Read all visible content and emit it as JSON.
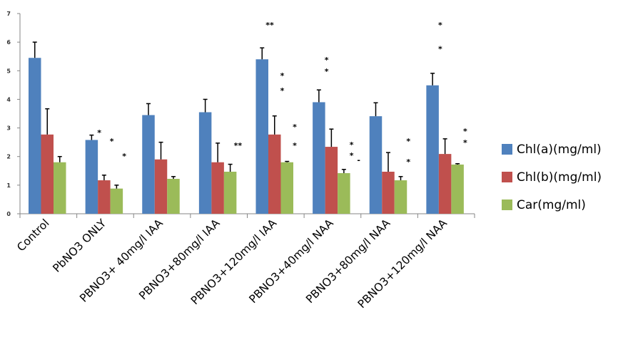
{
  "chart_data": {
    "type": "bar",
    "title": "",
    "xlabel": "",
    "ylabel": "",
    "ylim": [
      0,
      7
    ],
    "yticks": [
      0,
      1,
      2,
      3,
      4,
      5,
      6,
      7
    ],
    "grid": false,
    "legend_position": "right",
    "categories": [
      "Control",
      "PbNO3 ONLY",
      "PBNO3+ 40mg/l IAA",
      "PBNO3+80mg/l IAA",
      "PBNO3+120mg/l IAA",
      "PBNO3+40mg/l NAA",
      "PBNO3+80mg/l NAA",
      "PBNO3+120mg/l NAA"
    ],
    "series": [
      {
        "name": "Chl(a)(mg/ml)",
        "color": "#4f81bd",
        "values": [
          5.45,
          2.58,
          3.45,
          3.55,
          5.4,
          3.9,
          3.41,
          4.49
        ],
        "error_upper": [
          6.0,
          2.75,
          3.85,
          4.0,
          5.8,
          4.33,
          3.88,
          4.91
        ]
      },
      {
        "name": "Chl(b)(mg/ml)",
        "color": "#c0504d",
        "values": [
          2.77,
          1.17,
          1.9,
          1.8,
          2.77,
          2.34,
          1.47,
          2.09
        ],
        "error_upper": [
          3.67,
          1.35,
          2.5,
          2.47,
          3.42,
          2.96,
          2.14,
          2.62
        ]
      },
      {
        "name": "Car(mg/ml)",
        "color": "#9bbb59",
        "values": [
          1.8,
          0.88,
          1.22,
          1.47,
          1.8,
          1.42,
          1.17,
          1.72
        ],
        "error_upper": [
          2.0,
          1.0,
          1.3,
          1.73,
          1.83,
          1.55,
          1.3,
          1.75
        ]
      }
    ],
    "annotations": [
      {
        "category": 1,
        "series": 0,
        "text": "*",
        "y": 2.87
      },
      {
        "category": 1,
        "series": 1,
        "text": "*",
        "y": 2.57
      },
      {
        "category": 1,
        "series": 2,
        "text": "*",
        "y": 2.04
      },
      {
        "category": 3,
        "series": 2,
        "text": "**",
        "y": 2.42
      },
      {
        "category": 4,
        "series": 0,
        "text": "**",
        "y": 6.63
      },
      {
        "category": 4,
        "series": 1,
        "text": "*",
        "y": 4.86
      },
      {
        "category": 4,
        "series": 1,
        "text": "*",
        "y": 4.34
      },
      {
        "category": 4,
        "series": 2,
        "text": "*",
        "y": 3.07
      },
      {
        "category": 4,
        "series": 2,
        "text": "*",
        "y": 2.42
      },
      {
        "category": 5,
        "series": 0,
        "text": "*",
        "y": 5.41
      },
      {
        "category": 5,
        "series": 0,
        "text": "*",
        "y": 5.01
      },
      {
        "category": 5,
        "series": 2,
        "text": "*",
        "y": 2.44
      },
      {
        "category": 5,
        "series": 2,
        "text": "*",
        "y": 2.07
      },
      {
        "category": 5,
        "series": 2,
        "text": "-",
        "y": 1.9
      },
      {
        "category": 6,
        "series": 2,
        "text": "*",
        "y": 2.57
      },
      {
        "category": 6,
        "series": 2,
        "text": "*",
        "y": 1.84
      },
      {
        "category": 7,
        "series": 0,
        "text": "*",
        "y": 6.63
      },
      {
        "category": 7,
        "series": 0,
        "text": "*",
        "y": 5.79
      },
      {
        "category": 7,
        "series": 2,
        "text": "*",
        "y": 2.92
      },
      {
        "category": 7,
        "series": 2,
        "text": "*",
        "y": 2.52
      }
    ]
  }
}
